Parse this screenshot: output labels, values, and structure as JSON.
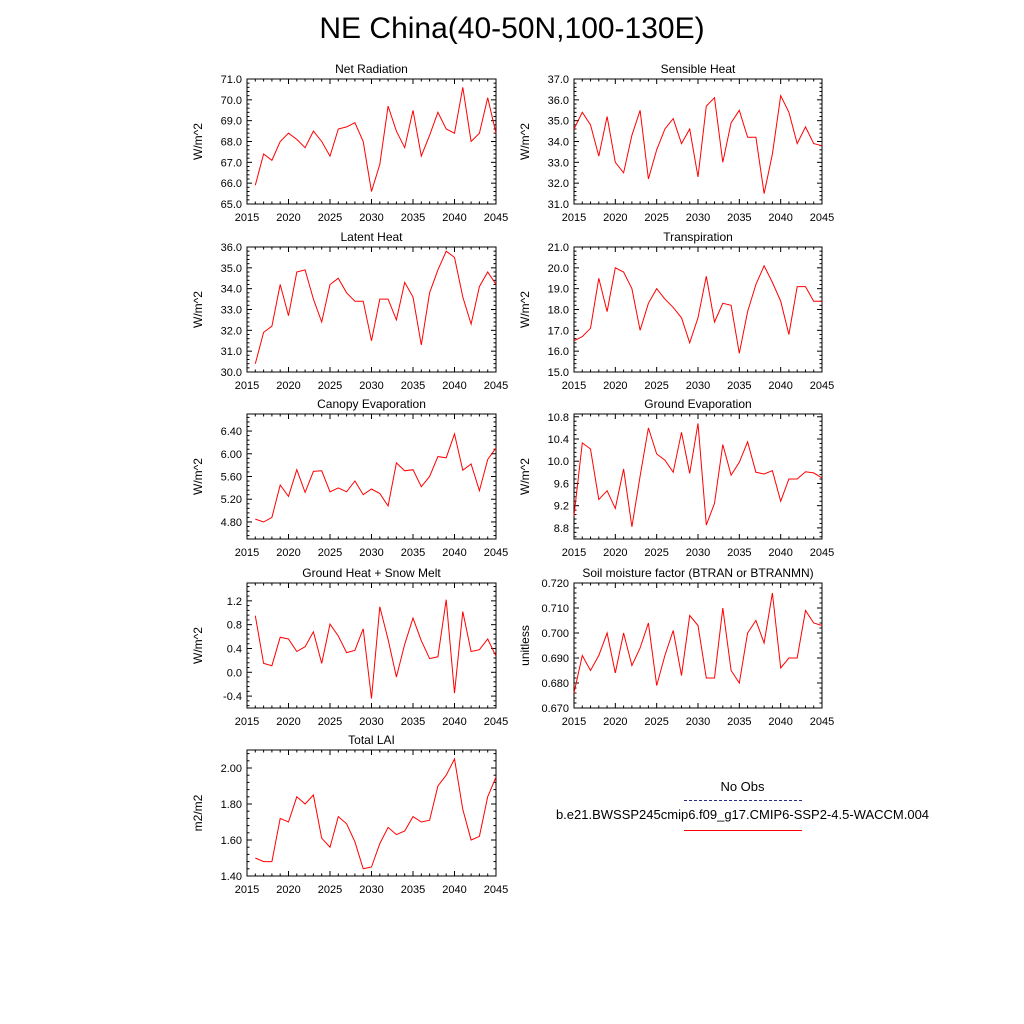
{
  "title": "NE China(40-50N,100-130E)",
  "legend": {
    "obs_label": "No Obs",
    "obs_color": "#2a2a8a",
    "case_label": "b.e21.BWSSP245cmip6.f09_g17.CMIP6-SSP2-4.5-WACCM.004",
    "case_color": "#ff0000"
  },
  "chart_data": [
    {
      "type": "line",
      "title": "Net Radiation",
      "ylabel": "W/m^2",
      "xlim": [
        2015,
        2045
      ],
      "ylim": [
        65.0,
        71.0
      ],
      "xticks": [
        "2015",
        "2020",
        "2025",
        "2030",
        "2035",
        "2040",
        "2045"
      ],
      "yticks": [
        65.0,
        66.0,
        67.0,
        68.0,
        69.0,
        70.0,
        71.0
      ],
      "ytick_labels": [
        "65.0",
        "66.0",
        "67.0",
        "68.0",
        "69.0",
        "70.0",
        "71.0"
      ],
      "series": [
        {
          "color": "#ff0000",
          "x": [
            2016,
            2017,
            2018,
            2019,
            2020,
            2021,
            2022,
            2023,
            2024,
            2025,
            2026,
            2027,
            2028,
            2029,
            2030,
            2031,
            2032,
            2033,
            2034,
            2035,
            2036,
            2037,
            2038,
            2039,
            2040,
            2041,
            2042,
            2043,
            2044,
            2045
          ],
          "y": [
            65.9,
            67.4,
            67.1,
            68.0,
            68.4,
            68.1,
            67.7,
            68.5,
            68.0,
            67.3,
            68.6,
            68.7,
            68.9,
            68.0,
            65.6,
            66.9,
            69.7,
            68.5,
            67.7,
            69.5,
            67.3,
            68.3,
            69.4,
            68.6,
            68.4,
            70.6,
            68.0,
            68.4,
            70.1,
            68.4
          ]
        }
      ]
    },
    {
      "type": "line",
      "title": "Sensible Heat",
      "ylabel": "W/m^2",
      "xlim": [
        2015,
        2045
      ],
      "ylim": [
        31.0,
        37.0
      ],
      "xticks": [
        "2015",
        "2020",
        "2025",
        "2030",
        "2035",
        "2040",
        "2045"
      ],
      "yticks": [
        31.0,
        32.0,
        33.0,
        34.0,
        35.0,
        36.0,
        37.0
      ],
      "ytick_labels": [
        "31.0",
        "32.0",
        "33.0",
        "34.0",
        "35.0",
        "36.0",
        "37.0"
      ],
      "series": [
        {
          "color": "#ff0000",
          "x": [
            2015,
            2016,
            2017,
            2018,
            2019,
            2020,
            2021,
            2022,
            2023,
            2024,
            2025,
            2026,
            2027,
            2028,
            2029,
            2030,
            2031,
            2032,
            2033,
            2034,
            2035,
            2036,
            2037,
            2038,
            2039,
            2040,
            2041,
            2042,
            2043,
            2044,
            2045
          ],
          "y": [
            34.6,
            35.4,
            34.8,
            33.3,
            35.2,
            33.0,
            32.5,
            34.3,
            35.5,
            32.2,
            33.6,
            34.6,
            35.1,
            33.9,
            34.6,
            32.3,
            35.7,
            36.1,
            33.0,
            34.9,
            35.5,
            34.2,
            34.2,
            31.5,
            33.4,
            36.2,
            35.4,
            33.9,
            34.7,
            33.9,
            33.8
          ]
        }
      ]
    },
    {
      "type": "line",
      "title": "Latent Heat",
      "ylabel": "W/m^2",
      "xlim": [
        2015,
        2045
      ],
      "ylim": [
        30.0,
        36.0
      ],
      "xticks": [
        "2015",
        "2020",
        "2025",
        "2030",
        "2035",
        "2040",
        "2045"
      ],
      "yticks": [
        30.0,
        31.0,
        32.0,
        33.0,
        34.0,
        35.0,
        36.0
      ],
      "ytick_labels": [
        "30.0",
        "31.0",
        "32.0",
        "33.0",
        "34.0",
        "35.0",
        "36.0"
      ],
      "series": [
        {
          "color": "#ff0000",
          "x": [
            2016,
            2017,
            2018,
            2019,
            2020,
            2021,
            2022,
            2023,
            2024,
            2025,
            2026,
            2027,
            2028,
            2029,
            2030,
            2031,
            2032,
            2033,
            2034,
            2035,
            2036,
            2037,
            2038,
            2039,
            2040,
            2041,
            2042,
            2043,
            2044,
            2045
          ],
          "y": [
            30.4,
            31.9,
            32.2,
            34.2,
            32.7,
            34.8,
            34.9,
            33.5,
            32.4,
            34.2,
            34.5,
            33.8,
            33.4,
            33.4,
            31.5,
            33.5,
            33.5,
            32.5,
            34.3,
            33.6,
            31.3,
            33.8,
            34.9,
            35.8,
            35.5,
            33.6,
            32.3,
            34.1,
            34.8,
            34.2
          ]
        }
      ]
    },
    {
      "type": "line",
      "title": "Transpiration",
      "ylabel": "W/m^2",
      "xlim": [
        2015,
        2045
      ],
      "ylim": [
        15.0,
        21.0
      ],
      "xticks": [
        "2015",
        "2020",
        "2025",
        "2030",
        "2035",
        "2040",
        "2045"
      ],
      "yticks": [
        15.0,
        16.0,
        17.0,
        18.0,
        19.0,
        20.0,
        21.0
      ],
      "ytick_labels": [
        "15.0",
        "16.0",
        "17.0",
        "18.0",
        "19.0",
        "20.0",
        "21.0"
      ],
      "series": [
        {
          "color": "#ff0000",
          "x": [
            2015,
            2016,
            2017,
            2018,
            2019,
            2020,
            2021,
            2022,
            2023,
            2024,
            2025,
            2026,
            2027,
            2028,
            2029,
            2030,
            2031,
            2032,
            2033,
            2034,
            2035,
            2036,
            2037,
            2038,
            2039,
            2040,
            2041,
            2042,
            2043,
            2044,
            2045
          ],
          "y": [
            16.5,
            16.7,
            17.1,
            19.5,
            17.9,
            20.0,
            19.8,
            19.0,
            17.0,
            18.3,
            19.0,
            18.5,
            18.1,
            17.6,
            16.4,
            17.6,
            19.6,
            17.4,
            18.3,
            18.2,
            15.9,
            17.9,
            19.2,
            20.1,
            19.3,
            18.4,
            16.8,
            19.1,
            19.1,
            18.4,
            18.4
          ]
        }
      ]
    },
    {
      "type": "line",
      "title": "Canopy Evaporation",
      "ylabel": "W/m^2",
      "xlim": [
        2015,
        2045
      ],
      "ylim": [
        4.5,
        6.7
      ],
      "xticks": [
        "2015",
        "2020",
        "2025",
        "2030",
        "2035",
        "2040",
        "2045"
      ],
      "yticks": [
        4.8,
        5.2,
        5.6,
        6.0,
        6.4
      ],
      "ytick_labels": [
        "4.80",
        "5.20",
        "5.60",
        "6.00",
        "6.40"
      ],
      "series": [
        {
          "color": "#ff0000",
          "x": [
            2016,
            2017,
            2018,
            2019,
            2020,
            2021,
            2022,
            2023,
            2024,
            2025,
            2026,
            2027,
            2028,
            2029,
            2030,
            2031,
            2032,
            2033,
            2034,
            2035,
            2036,
            2037,
            2038,
            2039,
            2040,
            2041,
            2042,
            2043,
            2044,
            2045
          ],
          "y": [
            4.85,
            4.8,
            4.88,
            5.45,
            5.25,
            5.72,
            5.32,
            5.69,
            5.7,
            5.33,
            5.4,
            5.33,
            5.52,
            5.28,
            5.38,
            5.3,
            5.08,
            5.84,
            5.7,
            5.72,
            5.42,
            5.6,
            5.95,
            5.93,
            6.35,
            5.71,
            5.82,
            5.35,
            5.9,
            6.1
          ]
        }
      ]
    },
    {
      "type": "line",
      "title": "Ground Evaporation",
      "ylabel": "W/m^2",
      "xlim": [
        2015,
        2045
      ],
      "ylim": [
        8.6,
        10.85
      ],
      "xticks": [
        "2015",
        "2020",
        "2025",
        "2030",
        "2035",
        "2040",
        "2045"
      ],
      "yticks": [
        8.8,
        9.2,
        9.6,
        10.0,
        10.4,
        10.8
      ],
      "ytick_labels": [
        "8.8",
        "9.2",
        "9.6",
        "10.0",
        "10.4",
        "10.8"
      ],
      "series": [
        {
          "color": "#ff0000",
          "x": [
            2015,
            2016,
            2017,
            2018,
            2019,
            2020,
            2021,
            2022,
            2023,
            2024,
            2025,
            2026,
            2027,
            2028,
            2029,
            2030,
            2031,
            2032,
            2033,
            2034,
            2035,
            2036,
            2037,
            2038,
            2039,
            2040,
            2041,
            2042,
            2043,
            2044,
            2045
          ],
          "y": [
            9.02,
            10.33,
            10.22,
            9.31,
            9.47,
            9.15,
            9.86,
            8.82,
            9.73,
            10.6,
            10.13,
            10.02,
            9.8,
            10.52,
            9.78,
            10.68,
            8.85,
            9.24,
            10.3,
            9.75,
            9.98,
            10.35,
            9.8,
            9.77,
            9.83,
            9.28,
            9.68,
            9.68,
            9.81,
            9.79,
            9.7
          ]
        }
      ]
    },
    {
      "type": "line",
      "title": "Ground Heat + Snow Melt",
      "ylabel": "W/m^2",
      "xlim": [
        2015,
        2045
      ],
      "ylim": [
        -0.6,
        1.5
      ],
      "xticks": [
        "2015",
        "2020",
        "2025",
        "2030",
        "2035",
        "2040",
        "2045"
      ],
      "yticks": [
        -0.4,
        0.0,
        0.4,
        0.8,
        1.2
      ],
      "ytick_labels": [
        "-0.4",
        "0.0",
        "0.4",
        "0.8",
        "1.2"
      ],
      "series": [
        {
          "color": "#ff0000",
          "x": [
            2016,
            2017,
            2018,
            2019,
            2020,
            2021,
            2022,
            2023,
            2024,
            2025,
            2026,
            2027,
            2028,
            2029,
            2030,
            2031,
            2032,
            2033,
            2034,
            2035,
            2036,
            2037,
            2038,
            2039,
            2040,
            2041,
            2042,
            2043,
            2044,
            2045
          ],
          "y": [
            0.95,
            0.15,
            0.11,
            0.59,
            0.56,
            0.35,
            0.43,
            0.68,
            0.15,
            0.81,
            0.61,
            0.33,
            0.37,
            0.73,
            -0.44,
            1.1,
            0.55,
            -0.08,
            0.47,
            0.91,
            0.53,
            0.23,
            0.26,
            1.22,
            -0.35,
            1.02,
            0.35,
            0.38,
            0.56,
            0.27
          ]
        }
      ]
    },
    {
      "type": "line",
      "title": "Soil moisture factor (BTRAN or BTRANMN)",
      "ylabel": "unitless",
      "xlim": [
        2015,
        2045
      ],
      "ylim": [
        0.67,
        0.72
      ],
      "xticks": [
        "2015",
        "2020",
        "2025",
        "2030",
        "2035",
        "2040",
        "2045"
      ],
      "yticks": [
        0.67,
        0.68,
        0.69,
        0.7,
        0.71,
        0.72
      ],
      "ytick_labels": [
        "0.670",
        "0.680",
        "0.690",
        "0.700",
        "0.710",
        "0.720"
      ],
      "series": [
        {
          "color": "#ff0000",
          "x": [
            2015,
            2016,
            2017,
            2018,
            2019,
            2020,
            2021,
            2022,
            2023,
            2024,
            2025,
            2026,
            2027,
            2028,
            2029,
            2030,
            2031,
            2032,
            2033,
            2034,
            2035,
            2036,
            2037,
            2038,
            2039,
            2040,
            2041,
            2042,
            2043,
            2044,
            2045
          ],
          "y": [
            0.676,
            0.691,
            0.685,
            0.691,
            0.7,
            0.684,
            0.7,
            0.687,
            0.694,
            0.704,
            0.679,
            0.691,
            0.701,
            0.683,
            0.707,
            0.703,
            0.682,
            0.682,
            0.71,
            0.685,
            0.68,
            0.7,
            0.705,
            0.696,
            0.716,
            0.686,
            0.69,
            0.69,
            0.709,
            0.704,
            0.703
          ]
        }
      ]
    },
    {
      "type": "line",
      "title": "Total LAI",
      "ylabel": "m2/m2",
      "xlim": [
        2015,
        2045
      ],
      "ylim": [
        1.4,
        2.1
      ],
      "xticks": [
        "2015",
        "2020",
        "2025",
        "2030",
        "2035",
        "2040",
        "2045"
      ],
      "yticks": [
        1.4,
        1.6,
        1.8,
        2.0
      ],
      "ytick_labels": [
        "1.40",
        "1.60",
        "1.80",
        "2.00"
      ],
      "series": [
        {
          "color": "#ff0000",
          "x": [
            2016,
            2017,
            2018,
            2019,
            2020,
            2021,
            2022,
            2023,
            2024,
            2025,
            2026,
            2027,
            2028,
            2029,
            2030,
            2031,
            2032,
            2033,
            2034,
            2035,
            2036,
            2037,
            2038,
            2039,
            2040,
            2041,
            2042,
            2043,
            2044,
            2045
          ],
          "y": [
            1.5,
            1.48,
            1.48,
            1.72,
            1.7,
            1.84,
            1.8,
            1.85,
            1.61,
            1.56,
            1.73,
            1.69,
            1.59,
            1.44,
            1.45,
            1.58,
            1.67,
            1.63,
            1.65,
            1.73,
            1.7,
            1.71,
            1.9,
            1.96,
            2.05,
            1.77,
            1.6,
            1.62,
            1.84,
            1.95
          ]
        }
      ]
    }
  ]
}
